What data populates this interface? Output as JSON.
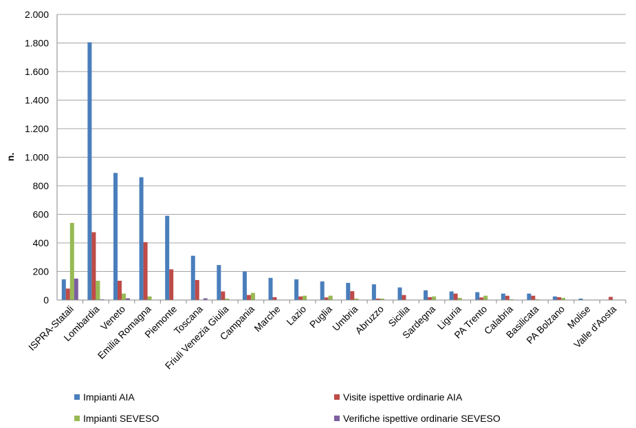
{
  "chart_data": {
    "type": "bar",
    "ylabel": "n.",
    "ylim": [
      0,
      2000
    ],
    "yticks": [
      0,
      200,
      400,
      600,
      800,
      1000,
      1200,
      1400,
      1600,
      1800,
      2000
    ],
    "ytick_labels": [
      "0",
      "200",
      "400",
      "600",
      "800",
      "1.000",
      "1.200",
      "1.400",
      "1.600",
      "1.800",
      "2.000"
    ],
    "grid": true,
    "legend_position": "bottom",
    "categories": [
      "ISPRA-Statali",
      "Lombardia",
      "Veneto",
      "Emilia Romagna",
      "Piemonte",
      "Toscana",
      "Friuli Venezia Giulia",
      "Campania",
      "Marche",
      "Lazio",
      "Puglia",
      "Umbria",
      "Abruzzo",
      "Sicilia",
      "Sardegna",
      "Liguria",
      "PA Trento",
      "Calabria",
      "Basilicata",
      "PA Bolzano",
      "Molise",
      "Valle d'Aosta"
    ],
    "series": [
      {
        "name": "Impianti AIA",
        "color": "#4a7ebb",
        "values": [
          145,
          1805,
          890,
          860,
          590,
          310,
          245,
          200,
          155,
          145,
          130,
          120,
          110,
          88,
          68,
          60,
          55,
          45,
          45,
          25,
          10,
          0
        ]
      },
      {
        "name": "Visite ispettive ordinarie AIA",
        "color": "#be4b48",
        "values": [
          80,
          475,
          135,
          405,
          215,
          140,
          60,
          35,
          20,
          25,
          18,
          62,
          10,
          35,
          20,
          45,
          18,
          30,
          30,
          20,
          0,
          22
        ]
      },
      {
        "name": "Impianti SEVESO",
        "color": "#98b954",
        "values": [
          540,
          135,
          45,
          25,
          0,
          0,
          10,
          50,
          0,
          30,
          30,
          10,
          10,
          0,
          25,
          15,
          30,
          5,
          5,
          15,
          0,
          0
        ]
      },
      {
        "name": "Verifiche ispettive ordinarie SEVESO",
        "color": "#7d60a0",
        "values": [
          150,
          5,
          12,
          2,
          0,
          12,
          2,
          0,
          0,
          0,
          0,
          2,
          0,
          0,
          2,
          2,
          0,
          0,
          0,
          0,
          0,
          0
        ]
      }
    ]
  },
  "colors": {
    "axis": "#868686",
    "grid": "#868686",
    "background": "#ffffff"
  }
}
